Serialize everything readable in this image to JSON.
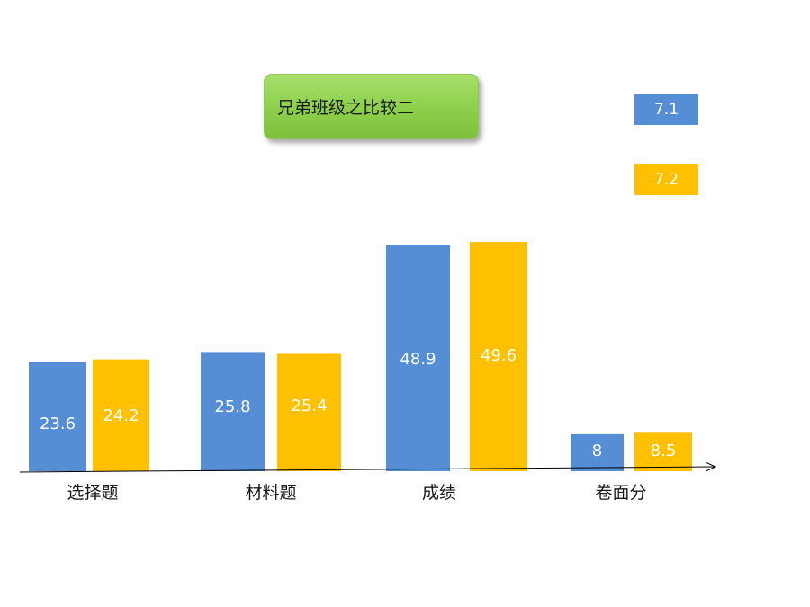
{
  "chart_data": {
    "type": "bar",
    "title": "兄弟班级之比较二",
    "categories": [
      "选择题",
      "材料题",
      "成绩",
      "卷面分"
    ],
    "series": [
      {
        "name": "7.1",
        "color": "#558ED5",
        "values": [
          23.6,
          25.8,
          48.9,
          8
        ]
      },
      {
        "name": "7.2",
        "color": "#FFC000",
        "values": [
          24.2,
          25.4,
          49.6,
          8.5
        ]
      }
    ],
    "value_labels": [
      [
        "23.6",
        "25.8",
        "48.9",
        "8"
      ],
      [
        "24.2",
        "25.4",
        "49.6",
        "8.5"
      ]
    ],
    "legend_position": "top-right",
    "grid": false
  }
}
